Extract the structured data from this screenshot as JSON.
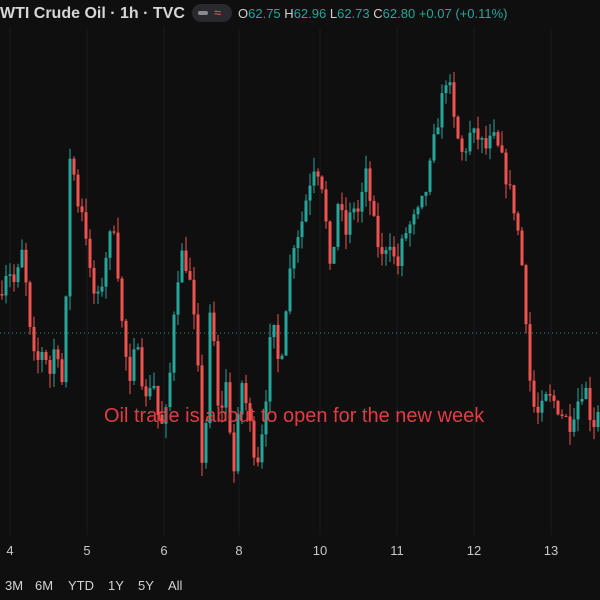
{
  "header": {
    "title": "WTI Crude Oil · 1h · TVC",
    "ohlc": {
      "o_label": "O",
      "o_value": "62.75",
      "h_label": "H",
      "h_value": "62.96",
      "l_label": "L",
      "l_value": "62.73",
      "c_label": "C",
      "c_value": "62.80",
      "change": "+0.07 (+0.11%)"
    },
    "icons": [
      "eye-icon",
      "waves-icon"
    ]
  },
  "annotation": "Oil trade is about to open for the new week",
  "range_buttons": [
    "3M",
    "6M",
    "YTD",
    "1Y",
    "5Y",
    "All"
  ],
  "colors": {
    "up": "#26a69a",
    "down": "#ef5350",
    "annotation": "#e03c44",
    "background": "#0f0f10"
  },
  "chart_data": {
    "type": "candlestick",
    "title": "WTI Crude Oil · 1h · TVC",
    "x_tick_labels": [
      "4",
      "5",
      "6",
      "8",
      "10",
      "11",
      "12",
      "13"
    ],
    "reference_line": "dotted horizontal price line",
    "path": [
      [
        0.0,
        62.84
      ],
      [
        0.3,
        62.92
      ],
      [
        0.6,
        62.86
      ],
      [
        0.9,
        62.96
      ],
      [
        1.2,
        62.72
      ],
      [
        1.4,
        62.64
      ],
      [
        1.7,
        62.7
      ],
      [
        2.0,
        62.62
      ],
      [
        2.2,
        62.73
      ],
      [
        2.5,
        62.57
      ],
      [
        2.8,
        63.33
      ],
      [
        2.95,
        63.1
      ],
      [
        3.3,
        63.06
      ],
      [
        3.6,
        62.85
      ],
      [
        3.9,
        62.82
      ],
      [
        4.2,
        62.96
      ],
      [
        4.5,
        63.03
      ],
      [
        4.8,
        62.76
      ],
      [
        5.1,
        62.58
      ],
      [
        5.4,
        62.74
      ],
      [
        5.7,
        62.54
      ],
      [
        6.0,
        62.63
      ],
      [
        6.3,
        62.47
      ],
      [
        6.6,
        62.53
      ],
      [
        6.9,
        62.86
      ],
      [
        7.2,
        62.96
      ],
      [
        7.5,
        62.86
      ],
      [
        7.75,
        62.68
      ],
      [
        8.0,
        62.32
      ],
      [
        8.3,
        62.84
      ],
      [
        8.6,
        62.5
      ],
      [
        8.9,
        62.6
      ],
      [
        9.2,
        62.36
      ],
      [
        9.5,
        62.61
      ],
      [
        9.8,
        62.5
      ],
      [
        10.1,
        62.38
      ],
      [
        10.4,
        62.52
      ],
      [
        10.7,
        62.77
      ],
      [
        11.0,
        62.63
      ],
      [
        11.3,
        62.85
      ],
      [
        11.6,
        63.0
      ],
      [
        11.8,
        63.01
      ],
      [
        12.1,
        63.12
      ],
      [
        12.4,
        63.2
      ],
      [
        12.7,
        63.13
      ],
      [
        13.0,
        62.88
      ],
      [
        13.3,
        63.09
      ],
      [
        13.6,
        63.0
      ],
      [
        13.9,
        63.08
      ],
      [
        14.1,
        63.06
      ],
      [
        14.4,
        63.16
      ],
      [
        14.7,
        63.03
      ],
      [
        15.0,
        62.93
      ],
      [
        15.3,
        63.0
      ],
      [
        15.6,
        62.9
      ],
      [
        15.9,
        63.0
      ],
      [
        16.2,
        63.03
      ],
      [
        16.5,
        63.06
      ],
      [
        16.8,
        63.13
      ],
      [
        17.1,
        63.26
      ],
      [
        17.4,
        63.37
      ],
      [
        17.6,
        63.44
      ],
      [
        17.9,
        63.28
      ],
      [
        18.2,
        63.21
      ],
      [
        18.5,
        63.27
      ],
      [
        18.8,
        63.26
      ],
      [
        19.1,
        63.23
      ],
      [
        19.4,
        63.26
      ],
      [
        19.7,
        63.21
      ],
      [
        20.0,
        63.13
      ],
      [
        20.3,
        63.05
      ],
      [
        20.6,
        62.88
      ],
      [
        20.9,
        62.55
      ],
      [
        21.2,
        62.51
      ],
      [
        21.5,
        62.56
      ],
      [
        21.8,
        62.55
      ],
      [
        22.1,
        62.52
      ],
      [
        22.4,
        62.49
      ],
      [
        22.7,
        62.55
      ],
      [
        23.0,
        62.6
      ],
      [
        23.3,
        62.48
      ],
      [
        23.6,
        62.55
      ]
    ],
    "ylim": [
      62.2,
      63.55
    ],
    "xlim": [
      0,
      23.6
    ]
  }
}
